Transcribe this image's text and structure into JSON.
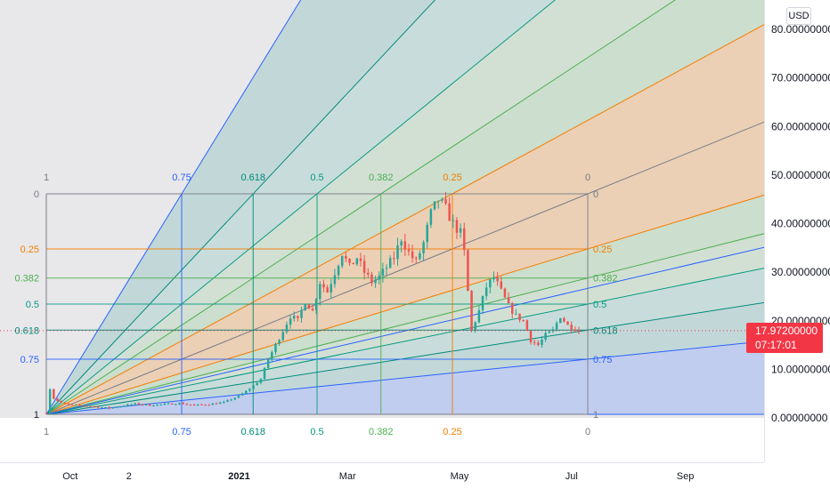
{
  "chart_data": {
    "type": "candlestick",
    "currency": "USD",
    "y_ticks": [
      "80.00000000",
      "70.00000000",
      "60.00000000",
      "50.00000000",
      "40.00000000",
      "30.00000000",
      "20.00000000",
      "10.00000000",
      "0.00000000"
    ],
    "y_tick_values": [
      80,
      70,
      60,
      50,
      40,
      30,
      20,
      10,
      0
    ],
    "ylim": [
      -0.5,
      84
    ],
    "x_ticks": [
      {
        "label": "Oct",
        "date": "2020-10-01"
      },
      {
        "label": "2",
        "date": "2020-11-02"
      },
      {
        "label": "2021",
        "date": "2021-01-01"
      },
      {
        "label": "Mar",
        "date": "2021-03-01"
      },
      {
        "label": "May",
        "date": "2021-05-01"
      },
      {
        "label": "Jul",
        "date": "2021-07-01"
      },
      {
        "label": "Sep",
        "date": "2021-09-01"
      }
    ],
    "last_price": "17.97200000",
    "countdown": "07:17:01",
    "fib_levels": [
      "0",
      "0.25",
      "0.382",
      "0.5",
      "0.618",
      "0.75",
      "1"
    ],
    "fib_level_values": [
      46.0,
      34.75,
      28.81,
      23.5,
      18.19,
      12.25,
      1.0
    ],
    "fib_colors": [
      "#787b86",
      "#f57c00",
      "#4caf50",
      "#089981",
      "#00897b",
      "#2962ff",
      "#787b86"
    ],
    "price_path": [
      [
        0,
        1.0
      ],
      [
        1,
        6.0
      ],
      [
        2,
        4.0
      ],
      [
        4,
        3.0
      ],
      [
        7,
        2.6
      ],
      [
        10,
        2.5
      ],
      [
        13,
        2.3
      ],
      [
        17,
        2.0
      ],
      [
        20,
        2.4
      ],
      [
        24,
        2.9
      ],
      [
        28,
        2.6
      ],
      [
        32,
        2.8
      ],
      [
        36,
        3.0
      ],
      [
        40,
        2.6
      ],
      [
        44,
        2.8
      ],
      [
        48,
        3.2
      ],
      [
        52,
        4.5
      ],
      [
        55,
        6.0
      ],
      [
        58,
        8.0
      ],
      [
        60,
        12.0
      ],
      [
        62,
        15.0
      ],
      [
        64,
        18.0
      ],
      [
        66,
        21.0
      ],
      [
        68,
        20.0
      ],
      [
        70,
        24.0
      ],
      [
        72,
        22.0
      ],
      [
        74,
        28.0
      ],
      [
        76,
        26.0
      ],
      [
        78,
        30.0
      ],
      [
        80,
        34.0
      ],
      [
        82,
        31.0
      ],
      [
        84,
        33.0
      ],
      [
        86,
        30.0
      ],
      [
        88,
        28.0
      ],
      [
        90,
        29.0
      ],
      [
        92,
        31.0
      ],
      [
        94,
        33.0
      ],
      [
        96,
        37.0
      ],
      [
        98,
        34.0
      ],
      [
        100,
        32.0
      ],
      [
        102,
        36.0
      ],
      [
        104,
        42.0
      ],
      [
        106,
        45.0
      ],
      [
        108,
        43.0
      ],
      [
        110,
        40.0
      ],
      [
        112,
        38.0
      ],
      [
        113,
        34.0
      ],
      [
        114,
        26.0
      ],
      [
        115,
        18.0
      ],
      [
        117,
        22.0
      ],
      [
        119,
        27.0
      ],
      [
        121,
        29.0
      ],
      [
        123,
        26.0
      ],
      [
        125,
        23.0
      ],
      [
        127,
        21.0
      ],
      [
        129,
        20.0
      ],
      [
        131,
        16.0
      ],
      [
        133,
        15.0
      ],
      [
        135,
        17.0
      ],
      [
        137,
        18.0
      ],
      [
        139,
        21.0
      ],
      [
        141,
        19.0
      ],
      [
        143,
        18.5
      ],
      [
        144,
        18.0
      ]
    ]
  },
  "labels": {
    "usd": "USD"
  }
}
